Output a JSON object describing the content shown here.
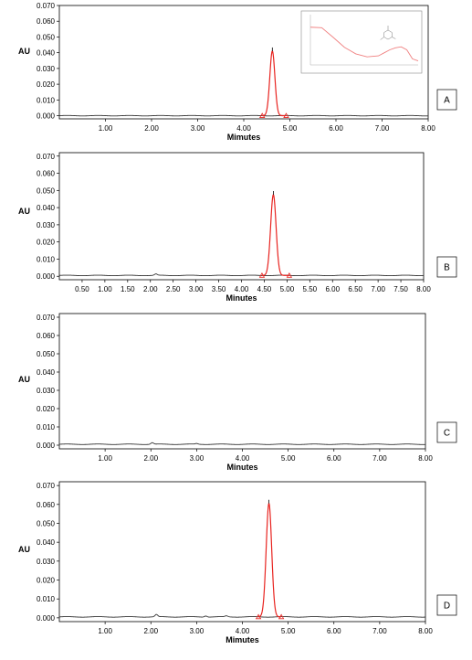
{
  "colors": {
    "trace": "#333333",
    "peak": "#e8231f",
    "marker": "#e8231f",
    "inset_curve": "#f08080",
    "inset_frame": "#888888"
  },
  "chart_data": [
    {
      "type": "line",
      "panel_label": "A",
      "xlabel": "Mimutes",
      "ylabel": "AU",
      "xlim": [
        0,
        8
      ],
      "ylim": [
        -0.002,
        0.07
      ],
      "xticks": [
        "1.00",
        "2.00",
        "3.00",
        "4.00",
        "5.00",
        "6.00",
        "7.00",
        "8.00"
      ],
      "yticks": [
        "0.000",
        "0.010",
        "0.020",
        "0.030",
        "0.040",
        "0.050",
        "0.060",
        "0.070"
      ],
      "baseline": 0.0,
      "peak": {
        "retention_time": 4.62,
        "height": 0.041,
        "sigma": 0.055,
        "start": 4.4,
        "end": 4.92
      },
      "small_bumps": [],
      "inset": {
        "type": "line",
        "description": "UV spectrum",
        "x": [
          210,
          220,
          230,
          240,
          250,
          260,
          270,
          275,
          280,
          285,
          290,
          295,
          300,
          305
        ],
        "y": [
          0.75,
          0.74,
          0.55,
          0.35,
          0.22,
          0.16,
          0.18,
          0.24,
          0.3,
          0.34,
          0.36,
          0.3,
          0.12,
          0.08
        ]
      }
    },
    {
      "type": "line",
      "panel_label": "B",
      "xlabel": "Minutes",
      "ylabel": "AU",
      "xlim": [
        0,
        8
      ],
      "ylim": [
        -0.002,
        0.072
      ],
      "xticks": [
        "0.50",
        "1.00",
        "1.50",
        "2.00",
        "2.50",
        "3.00",
        "3.50",
        "4.00",
        "4.50",
        "5.00",
        "5.50",
        "6.00",
        "6.50",
        "7.00",
        "7.50",
        "8.00"
      ],
      "yticks": [
        "0.000",
        "0.010",
        "0.020",
        "0.030",
        "0.040",
        "0.050",
        "0.060",
        "0.070"
      ],
      "baseline": 0.0005,
      "peak": {
        "retention_time": 4.7,
        "height": 0.047,
        "sigma": 0.06,
        "start": 4.45,
        "end": 5.05
      },
      "small_bumps": [
        {
          "x": 2.12,
          "h": 0.0008
        }
      ]
    },
    {
      "type": "line",
      "panel_label": "C",
      "xlabel": "Minutes",
      "ylabel": "AU",
      "xlim": [
        0,
        8
      ],
      "ylim": [
        -0.002,
        0.072
      ],
      "xticks": [
        "1.00",
        "2.00",
        "3.00",
        "4.00",
        "5.00",
        "6.00",
        "7.00",
        "8.00"
      ],
      "yticks": [
        "0.000",
        "0.010",
        "0.020",
        "0.030",
        "0.040",
        "0.050",
        "0.060",
        "0.070"
      ],
      "baseline": 0.0005,
      "peak": null,
      "small_bumps": [
        {
          "x": 2.03,
          "h": 0.0009
        },
        {
          "x": 3.0,
          "h": 0.0004
        }
      ]
    },
    {
      "type": "line",
      "panel_label": "D",
      "xlabel": "Mimutes",
      "ylabel": "AU",
      "xlim": [
        0,
        8
      ],
      "ylim": [
        -0.002,
        0.072
      ],
      "xticks": [
        "1.00",
        "2.00",
        "3.00",
        "4.00",
        "5.00",
        "6.00",
        "7.00",
        "8.00"
      ],
      "yticks": [
        "0.000",
        "0.010",
        "0.020",
        "0.030",
        "0.040",
        "0.050",
        "0.060",
        "0.070"
      ],
      "baseline": 0.0005,
      "peak": {
        "retention_time": 4.58,
        "height": 0.06,
        "sigma": 0.06,
        "start": 4.35,
        "end": 4.85
      },
      "small_bumps": [
        {
          "x": 2.12,
          "h": 0.0012
        },
        {
          "x": 3.2,
          "h": 0.0006
        },
        {
          "x": 3.65,
          "h": 0.0005
        }
      ]
    }
  ]
}
